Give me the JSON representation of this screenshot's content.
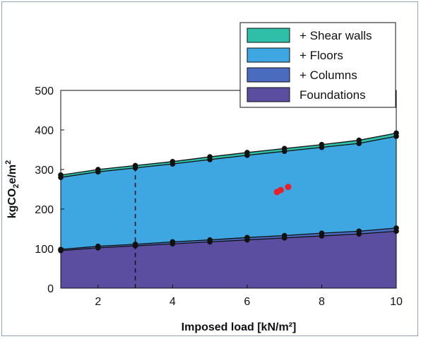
{
  "chart_data": {
    "type": "area",
    "stacked": true,
    "x": [
      1,
      2,
      3,
      4,
      5,
      6,
      7,
      8,
      9,
      10
    ],
    "xlim": [
      1,
      10
    ],
    "ylim": [
      0,
      500
    ],
    "xticks": [
      "2",
      "4",
      "6",
      "8",
      "10"
    ],
    "yticks": [
      "0",
      "100",
      "200",
      "300",
      "400",
      "500"
    ],
    "xlabel": "Imposed load [kN/m²]",
    "ylabel_main": "kgCO",
    "ylabel_sub": "2",
    "ylabel_mid": "e/m",
    "ylabel_sup": "2",
    "reference_line_x": 3,
    "legend_position": "top-right",
    "series": [
      {
        "name": "Foundations",
        "color": "#5b4ea0",
        "values": [
          95,
          102,
          107,
          112,
          117,
          122,
          127,
          132,
          137,
          144
        ]
      },
      {
        "name": "+ Columns",
        "color": "#4a6cc0",
        "values": [
          3,
          4,
          4,
          5,
          5,
          6,
          6,
          7,
          7,
          8
        ]
      },
      {
        "name": "+ Floors",
        "color": "#3ea6e0",
        "values": [
          182,
          188,
          193,
          197,
          203,
          208,
          213,
          217,
          222,
          232
        ]
      },
      {
        "name": "+ Shear walls",
        "color": "#2fbfa8",
        "values": [
          6,
          6,
          6,
          6,
          7,
          7,
          7,
          7,
          8,
          8
        ]
      }
    ],
    "highlight_points": [
      [
        6.8,
        243
      ],
      [
        6.9,
        248
      ],
      [
        7.1,
        256
      ]
    ]
  }
}
